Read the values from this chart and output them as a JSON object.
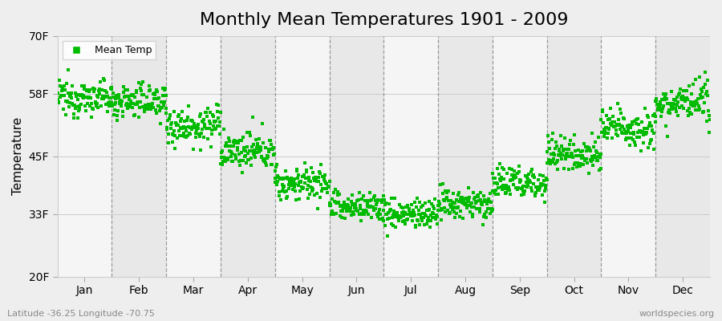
{
  "title": "Monthly Mean Temperatures 1901 - 2009",
  "ylabel": "Temperature",
  "ylim": [
    20,
    70
  ],
  "yticks": [
    20,
    33,
    45,
    58,
    70
  ],
  "ytick_labels": [
    "20F",
    "33F",
    "45F",
    "58F",
    "70F"
  ],
  "months": [
    "Jan",
    "Feb",
    "Mar",
    "Apr",
    "May",
    "Jun",
    "Jul",
    "Aug",
    "Sep",
    "Oct",
    "Nov",
    "Dec"
  ],
  "monthly_mean_temps_F": [
    57.2,
    56.5,
    51.5,
    46.0,
    39.5,
    34.5,
    33.0,
    35.0,
    39.5,
    45.5,
    51.0,
    56.0
  ],
  "monthly_std_F": [
    1.8,
    1.8,
    2.0,
    1.8,
    1.8,
    1.6,
    1.6,
    1.6,
    1.8,
    1.8,
    2.0,
    2.0
  ],
  "n_years": 109,
  "start_year": 1901,
  "dot_color": "#00bb00",
  "dot_size": 7,
  "background_color": "#eeeeee",
  "plot_bg_color_light": "#f5f5f5",
  "plot_bg_color_dark": "#e8e8e8",
  "legend_label": "Mean Temp",
  "subtitle_left": "Latitude -36.25 Longitude -70.75",
  "subtitle_right": "worldspecies.org",
  "title_fontsize": 16,
  "axis_label_fontsize": 11,
  "tick_fontsize": 10,
  "vline_color": "#999999",
  "vline_style": "--",
  "warming_trend_per_decade": 0.3
}
